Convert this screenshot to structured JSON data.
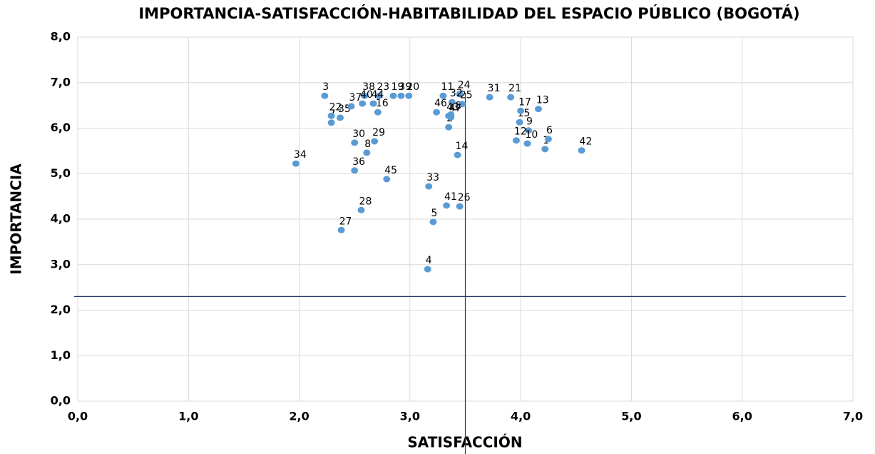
{
  "chart_data": {
    "type": "scatter",
    "title": "IMPORTANCIA-SATISFACCIÓN-HABITABILIDAD DEL ESPACIO PÚBLICO (BOGOTÁ)",
    "x_label": "SATISFACCIÓN",
    "y_label": "IMPORTANCIA",
    "xlim": [
      0,
      7
    ],
    "ylim": [
      0,
      8
    ],
    "xticks": [
      {
        "value": 0,
        "label": "0,0"
      },
      {
        "value": 1,
        "label": "1,0"
      },
      {
        "value": 2,
        "label": "2,0"
      },
      {
        "value": 3,
        "label": "3,0"
      },
      {
        "value": 4,
        "label": "4,0"
      },
      {
        "value": 5,
        "label": "5,0"
      },
      {
        "value": 6,
        "label": "6,0"
      },
      {
        "value": 7,
        "label": "7,0"
      }
    ],
    "yticks": [
      {
        "value": 0,
        "label": "0,0"
      },
      {
        "value": 1,
        "label": "1,0"
      },
      {
        "value": 2,
        "label": "2,0"
      },
      {
        "value": 3,
        "label": "3,0"
      },
      {
        "value": 4,
        "label": "4,0"
      },
      {
        "value": 5,
        "label": "5,0"
      },
      {
        "value": 6,
        "label": "6,0"
      },
      {
        "value": 7,
        "label": "7,0"
      },
      {
        "value": 8,
        "label": "8,0"
      }
    ],
    "grid": true,
    "reference_x": 3.5,
    "reference_y": 2.3,
    "reference_color": "#1f3864",
    "series": [
      {
        "color": "#5b9bd5",
        "labels": [
          "1",
          "2",
          "3",
          "4",
          "5",
          "6",
          "7",
          "8",
          "9",
          "10",
          "11",
          "12",
          "13",
          "14",
          "15",
          "16",
          "17",
          "18",
          "19",
          "20",
          "21",
          "22",
          "23",
          "24",
          "25",
          "26",
          "27",
          "28",
          "29",
          "30",
          "31",
          "32",
          "33",
          "34",
          "35",
          "36",
          "37",
          "38",
          "39",
          "40",
          "41",
          "42",
          "43",
          "44",
          "45",
          "46",
          "47"
        ],
        "x": [
          4.22,
          3.35,
          2.23,
          3.16,
          3.21,
          4.25,
          2.29,
          2.61,
          4.07,
          4.06,
          3.3,
          3.96,
          4.16,
          3.43,
          3.99,
          2.71,
          4.0,
          3.37,
          2.85,
          2.99,
          3.91,
          2.29,
          2.72,
          3.45,
          3.47,
          3.45,
          2.38,
          2.56,
          2.68,
          2.5,
          3.72,
          3.38,
          3.17,
          1.97,
          2.37,
          2.5,
          2.47,
          2.59,
          2.92,
          2.57,
          3.33,
          4.55,
          3.35,
          2.67,
          2.79,
          3.24,
          3.37
        ],
        "values": [
          5.54,
          6.02,
          6.71,
          2.9,
          3.94,
          5.76,
          6.12,
          5.46,
          5.95,
          5.66,
          6.71,
          5.73,
          6.42,
          5.41,
          6.13,
          6.35,
          6.38,
          6.3,
          6.71,
          6.71,
          6.68,
          6.27,
          6.71,
          6.75,
          6.53,
          4.28,
          3.76,
          4.2,
          5.71,
          5.68,
          6.68,
          6.57,
          4.72,
          5.22,
          6.23,
          5.07,
          6.48,
          6.71,
          6.71,
          6.54,
          4.3,
          5.51,
          6.27,
          6.54,
          4.88,
          6.35,
          6.24
        ]
      }
    ]
  }
}
